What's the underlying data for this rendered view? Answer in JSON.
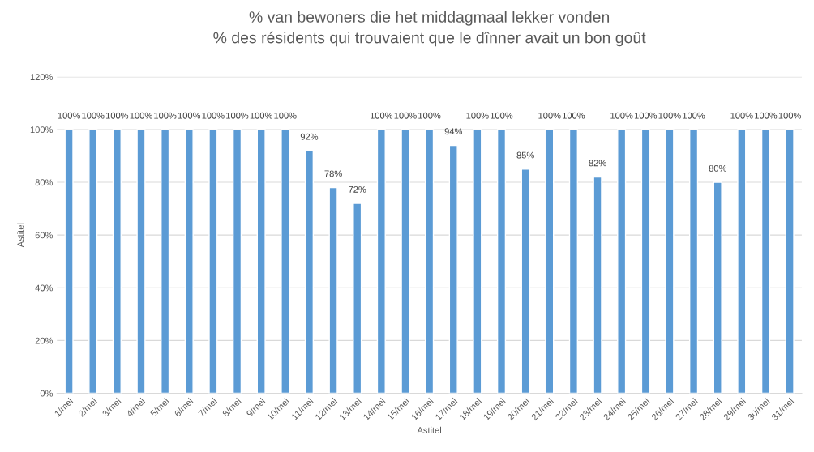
{
  "chart_data": {
    "type": "bar",
    "title": "% van bewoners die het middagmaal lekker vonden\n% des résidents qui trouvaient que le dînner avait un bon goût",
    "xlabel": "Astitel",
    "ylabel": "Astitel",
    "categories": [
      "1/mei",
      "2/mei",
      "3/mei",
      "4/mei",
      "5/mei",
      "6/mei",
      "7/mei",
      "8/mei",
      "9/mei",
      "10/mei",
      "11/mei",
      "12/mei",
      "13/mei",
      "14/mei",
      "15/mei",
      "16/mei",
      "17/mei",
      "18/mei",
      "19/mei",
      "20/mei",
      "21/mei",
      "22/mei",
      "23/mei",
      "24/mei",
      "25/mei",
      "26/mei",
      "27/mei",
      "28/mei",
      "29/mei",
      "30/mei",
      "31/mei"
    ],
    "values": [
      100,
      100,
      100,
      100,
      100,
      100,
      100,
      100,
      100,
      100,
      92,
      78,
      72,
      100,
      100,
      100,
      94,
      100,
      100,
      85,
      100,
      100,
      82,
      100,
      100,
      100,
      100,
      80,
      100,
      100,
      100
    ],
    "value_labels": [
      "100%",
      "100%",
      "100%",
      "100%",
      "100%",
      "100%",
      "100%",
      "100%",
      "100%",
      "100%",
      "92%",
      "78%",
      "72%",
      "100%",
      "100%",
      "100%",
      "94%",
      "100%",
      "100%",
      "85%",
      "100%",
      "100%",
      "82%",
      "100%",
      "100%",
      "100%",
      "100%",
      "80%",
      "100%",
      "100%",
      "100%"
    ],
    "color": "#5b9bd5",
    "ylim": [
      0,
      120
    ],
    "yticks": [
      {
        "value": 0,
        "label": "0%"
      },
      {
        "value": 20,
        "label": "20%"
      },
      {
        "value": 40,
        "label": "40%"
      },
      {
        "value": 60,
        "label": "60%"
      },
      {
        "value": 80,
        "label": "80%"
      },
      {
        "value": 100,
        "label": "100%"
      },
      {
        "value": 120,
        "label": "120%"
      }
    ],
    "grid": "y"
  }
}
